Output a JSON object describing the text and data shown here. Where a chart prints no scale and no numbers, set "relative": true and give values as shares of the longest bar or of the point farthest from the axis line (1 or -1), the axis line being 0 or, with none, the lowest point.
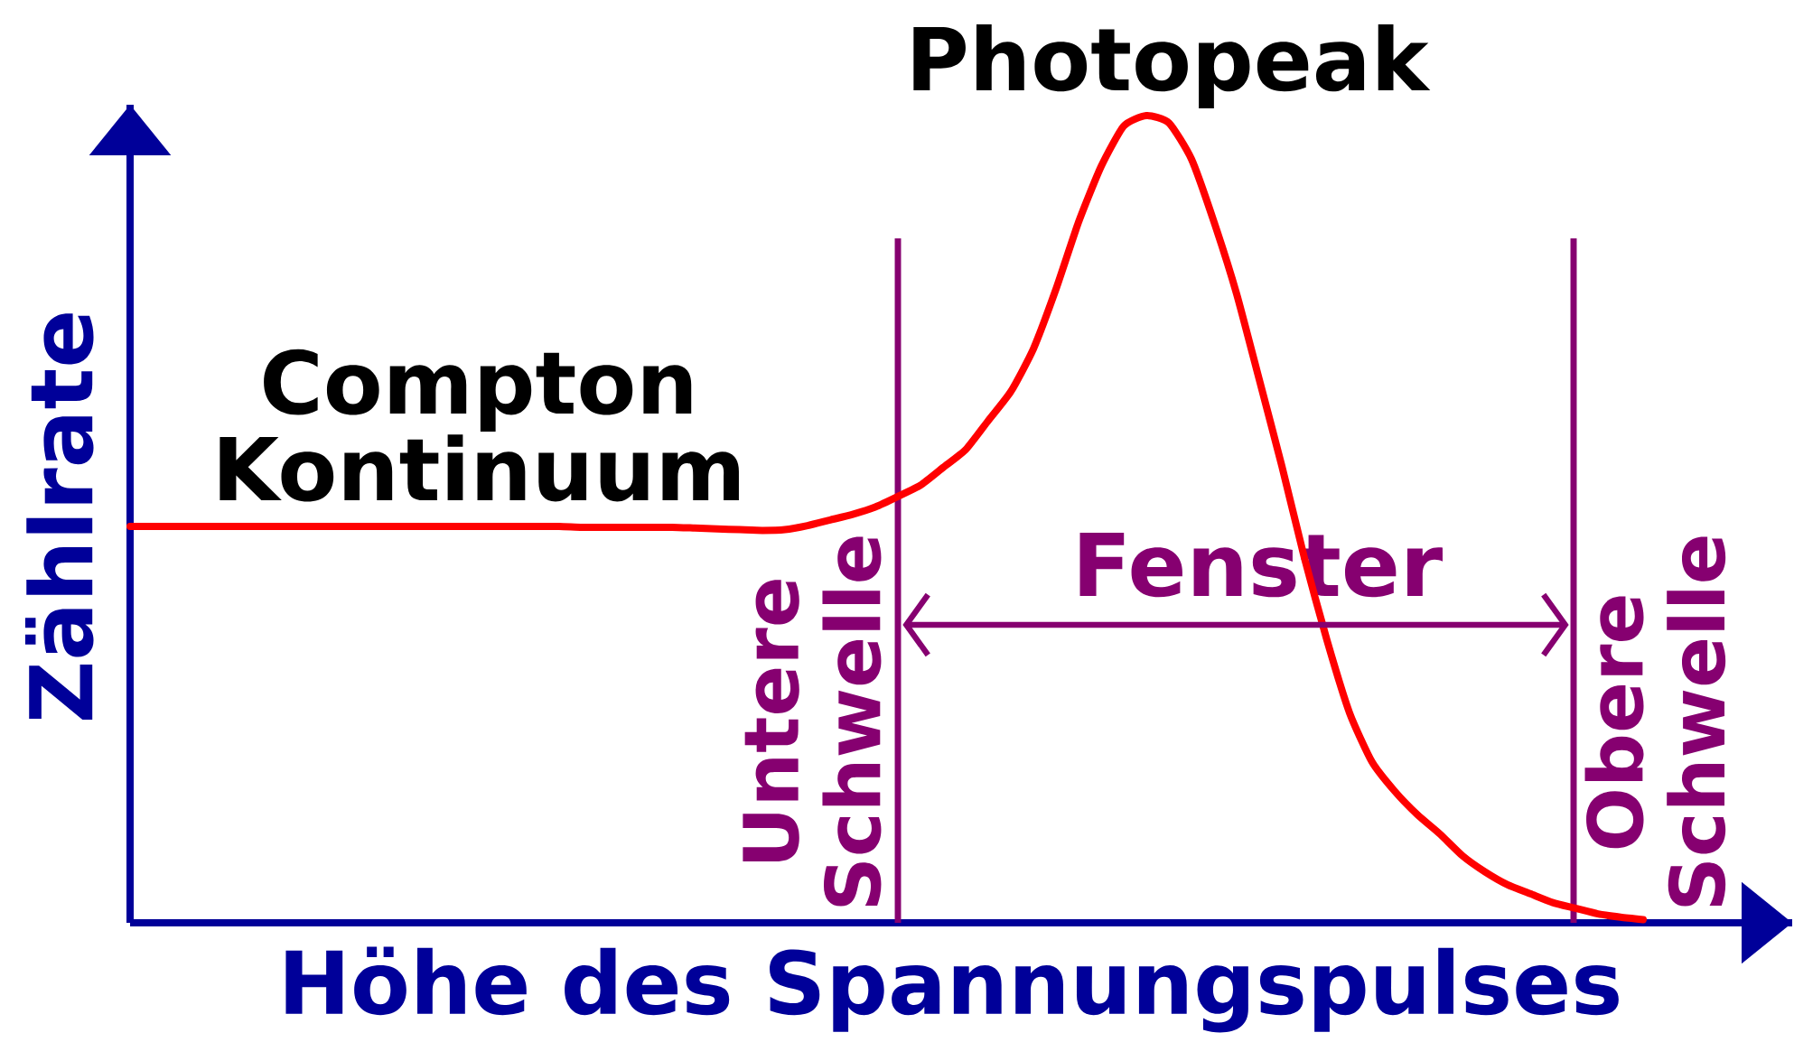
{
  "chart_data": {
    "type": "line",
    "relative": true,
    "xlabel": "Höhe des Spannungspulses",
    "ylabel": "Zählrate",
    "categories": [
      null,
      null,
      null,
      null,
      null,
      null,
      null,
      null,
      null,
      null,
      null,
      null,
      null,
      null,
      null,
      null,
      null,
      null,
      null,
      null,
      null,
      null,
      null,
      null,
      null,
      null,
      null,
      null,
      null,
      null,
      null,
      null,
      null,
      null,
      null,
      null,
      null,
      null,
      null,
      null,
      null,
      null,
      null,
      null,
      null,
      null,
      null,
      null,
      null,
      null,
      null,
      null,
      null,
      null,
      null,
      null,
      null,
      null,
      null,
      null,
      null,
      null,
      null,
      null,
      null,
      null,
      null,
      null
    ],
    "series": [
      {
        "color": "#ff0000",
        "values": [
          0.491,
          0.491,
          0.491,
          0.491,
          0.491,
          0.491,
          0.491,
          0.491,
          0.491,
          0.491,
          0.491,
          0.491,
          0.491,
          0.491,
          0.491,
          0.491,
          0.491,
          0.491,
          0.491,
          0.491,
          0.49,
          0.49,
          0.49,
          0.49,
          0.49,
          0.489,
          0.488,
          0.487,
          0.486,
          0.487,
          0.492,
          0.499,
          0.506,
          0.515,
          0.528,
          0.542,
          0.564,
          0.586,
          0.622,
          0.658,
          0.711,
          0.785,
          0.868,
          0.937,
          0.987,
          1.0,
          0.991,
          0.946,
          0.868,
          0.779,
          0.673,
          0.566,
          0.452,
          0.35,
          0.26,
          0.199,
          0.163,
          0.134,
          0.11,
          0.083,
          0.063,
          0.047,
          0.036,
          0.025,
          0.018,
          0.011,
          0.007,
          0.004
        ]
      }
    ],
    "annotations": [
      "Compton Kontinuum",
      "Photopeak",
      "Untere Schwelle",
      "Fenster",
      "Obere Schwelle"
    ],
    "marker": "none",
    "line_style": "solid"
  }
}
